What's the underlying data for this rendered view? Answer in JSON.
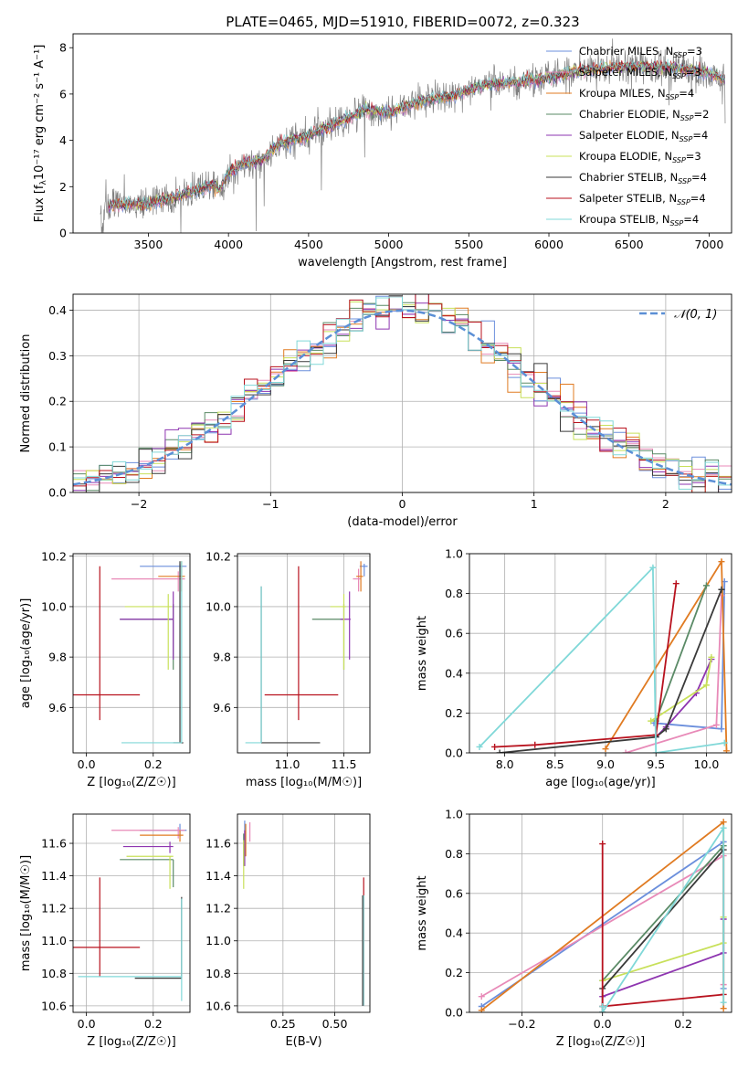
{
  "figure": {
    "title": "PLATE=0465, MJD=51910, FIBERID=0072, z=0.323"
  },
  "models": [
    {
      "name": "Chabrier MILES",
      "nssp": "3",
      "color": "#6b8fdc"
    },
    {
      "name": "Salpeter MILES",
      "nssp": "3",
      "color": "#e88ab8"
    },
    {
      "name": "Kroupa MILES",
      "nssp": "4",
      "color": "#e07b22"
    },
    {
      "name": "Chabrier ELODIE",
      "nssp": "2",
      "color": "#5a8a66"
    },
    {
      "name": "Salpeter ELODIE",
      "nssp": "4",
      "color": "#8e35b0"
    },
    {
      "name": "Kroupa ELODIE",
      "nssp": "3",
      "color": "#c8e05a"
    },
    {
      "name": "Chabrier STELIB",
      "nssp": "4",
      "color": "#3a3a3a"
    },
    {
      "name": "Salpeter STELIB",
      "nssp": "4",
      "color": "#b8121e"
    },
    {
      "name": "Kroupa STELIB",
      "nssp": "4",
      "color": "#80d8d8"
    }
  ],
  "chart_data": [
    {
      "id": "spectrum",
      "type": "line",
      "xlabel": "wavelength [Angstrom, rest frame]",
      "ylabel": "Flux [f",
      "ylabel_unit": "10⁻¹⁷ erg cm⁻² s⁻¹ A⁻¹]",
      "xlim": [
        3030,
        7140
      ],
      "ylim": [
        0,
        8.6
      ],
      "xticks": [
        3500,
        4000,
        4500,
        5000,
        5500,
        6000,
        6500,
        7000
      ],
      "yticks": [
        0,
        2,
        4,
        6,
        8
      ],
      "data_color": "#808080",
      "continuum": {
        "x": [
          3200,
          3250,
          3500,
          3700,
          3900,
          3950,
          4000,
          4100,
          4200,
          4300,
          4500,
          4700,
          4850,
          5000,
          5200,
          5400,
          5600,
          5800,
          6000,
          6200,
          6400,
          6600,
          6800,
          7000,
          7100
        ],
        "y": [
          0.3,
          1.2,
          1.25,
          1.6,
          2.1,
          1.9,
          2.6,
          3.0,
          3.1,
          3.8,
          4.2,
          4.8,
          5.3,
          5.2,
          5.7,
          5.9,
          6.4,
          6.5,
          6.7,
          7.0,
          7.15,
          7.2,
          7.1,
          6.9,
          6.6
        ]
      },
      "data_xrange": [
        3200,
        7100
      ]
    },
    {
      "id": "residuals",
      "type": "histogram",
      "xlabel": "(data-model)/error",
      "ylabel": "Normed distribution",
      "xlim": [
        -2.5,
        2.5
      ],
      "ylim": [
        0,
        0.435
      ],
      "xticks": [
        -2,
        -1,
        0,
        1,
        2
      ],
      "xticklabels": [
        "−2",
        "−1",
        "0",
        "1",
        "2"
      ],
      "yticks": [
        0,
        0.1,
        0.2,
        0.3,
        0.4
      ],
      "yticklabels": [
        "0.0",
        "0.1",
        "0.2",
        "0.3",
        "0.4"
      ],
      "bin_width": 0.1,
      "grid": true,
      "gaussian": {
        "label": "𝒩(0, 1)",
        "mean": 0,
        "sigma": 1,
        "color": "#5b8fd6"
      },
      "legend_loc": "upper right"
    },
    {
      "id": "age-vs-Z",
      "type": "errorbar",
      "xlabel": "Z [log₁₀(Z/Z☉)]",
      "ylabel": "age  [log₁₀(age/yr)]",
      "xlim": [
        -0.04,
        0.31
      ],
      "ylim": [
        9.42,
        10.21
      ],
      "xticks": [
        0.0,
        0.2
      ],
      "xticklabels": [
        "0.0",
        "0.2"
      ],
      "yticks": [
        9.6,
        9.8,
        10.0,
        10.2
      ],
      "yticklabels": [
        "9.6",
        "9.8",
        "10.0",
        "10.2"
      ],
      "points": [
        {
          "model": 0,
          "x": 0.28,
          "xerr": [
            0.12,
            0.02
          ],
          "y": 10.16,
          "yerr": [
            0.04,
            0.01
          ]
        },
        {
          "model": 1,
          "x": 0.275,
          "xerr": [
            0.2,
            0.02
          ],
          "y": 10.11,
          "yerr": [
            0.05,
            0.03
          ]
        },
        {
          "model": 2,
          "x": 0.285,
          "xerr": [
            0.07,
            0.01
          ],
          "y": 10.12,
          "yerr": [
            0.06,
            0.06
          ]
        },
        {
          "model": 3,
          "x": 0.26,
          "xerr": [
            0.16,
            0.0
          ],
          "y": 9.95,
          "yerr": [
            0.2,
            0.06
          ]
        },
        {
          "model": 4,
          "x": 0.26,
          "xerr": [
            0.16,
            0.0
          ],
          "y": 9.95,
          "yerr": [
            0.16,
            0.11
          ]
        },
        {
          "model": 5,
          "x": 0.245,
          "xerr": [
            0.13,
            0.01
          ],
          "y": 10.0,
          "yerr": [
            0.25,
            0.05
          ]
        },
        {
          "model": 6,
          "x": 0.28,
          "xerr": [
            0.02,
            0.01
          ],
          "y": 9.46,
          "yerr": [
            0.0,
            0.72
          ]
        },
        {
          "model": 7,
          "x": 0.04,
          "xerr": [
            0.08,
            0.12
          ],
          "y": 9.65,
          "yerr": [
            0.1,
            0.51
          ]
        },
        {
          "model": 8,
          "x": 0.285,
          "xerr": [
            0.18,
            0.0
          ],
          "y": 9.46,
          "yerr": [
            0.0,
            0.72
          ]
        }
      ]
    },
    {
      "id": "age-vs-mass",
      "type": "errorbar",
      "xlabel": "mass [log₁₀(M/M☉)]",
      "xlim": [
        10.56,
        11.73
      ],
      "ylim": [
        9.42,
        10.21
      ],
      "xticks": [
        11.0,
        11.5
      ],
      "xticklabels": [
        "11.0",
        "11.5"
      ],
      "yticks": [
        9.6,
        9.8,
        10.0,
        10.2
      ],
      "yticklabels": [
        "9.6",
        "9.8",
        "10.0",
        "10.2"
      ],
      "points": [
        {
          "model": 0,
          "x": 11.68,
          "xerr": [
            0.04,
            0.03
          ],
          "y": 10.16,
          "yerr": [
            0.04,
            0.01
          ]
        },
        {
          "model": 1,
          "x": 11.63,
          "xerr": [
            0.05,
            0.02
          ],
          "y": 10.11,
          "yerr": [
            0.05,
            0.04
          ]
        },
        {
          "model": 2,
          "x": 11.65,
          "xerr": [
            0.04,
            0.02
          ],
          "y": 10.12,
          "yerr": [
            0.06,
            0.06
          ]
        },
        {
          "model": 3,
          "x": 11.5,
          "xerr": [
            0.28,
            0.0
          ],
          "y": 9.95,
          "yerr": [
            0.2,
            0.06
          ]
        },
        {
          "model": 4,
          "x": 11.55,
          "xerr": [
            0.08,
            0.01
          ],
          "y": 9.95,
          "yerr": [
            0.16,
            0.11
          ]
        },
        {
          "model": 5,
          "x": 11.5,
          "xerr": [
            0.12,
            0.02
          ],
          "y": 10.0,
          "yerr": [
            0.25,
            0.05
          ]
        },
        {
          "model": 6,
          "x": 10.77,
          "xerr": [
            0.0,
            0.52
          ],
          "y": 9.46,
          "yerr": [
            0.0,
            0.62
          ]
        },
        {
          "model": 7,
          "x": 11.1,
          "xerr": [
            0.3,
            0.35
          ],
          "y": 9.65,
          "yerr": [
            0.1,
            0.51
          ]
        },
        {
          "model": 8,
          "x": 10.77,
          "xerr": [
            0.14,
            0.0
          ],
          "y": 9.46,
          "yerr": [
            0.0,
            0.62
          ]
        }
      ]
    },
    {
      "id": "weight-vs-age",
      "type": "line",
      "xlabel": "age  [log₁₀(age/yr)]",
      "ylabel": "mass weight",
      "xlim": [
        7.65,
        10.25
      ],
      "ylim": [
        0,
        1.0
      ],
      "xticks": [
        8.0,
        8.5,
        9.0,
        9.5,
        10.0
      ],
      "xticklabels": [
        "8.0",
        "8.5",
        "9.0",
        "9.5",
        "10.0"
      ],
      "yticks": [
        0,
        0.2,
        0.4,
        0.6,
        0.8,
        1.0
      ],
      "yticklabels": [
        "0.0",
        "0.2",
        "0.4",
        "0.6",
        "0.8",
        "1.0"
      ],
      "series": [
        {
          "model": 0,
          "x": [
            9.48,
            10.15,
            10.18
          ],
          "y": [
            0.15,
            0.12,
            0.86
          ]
        },
        {
          "model": 1,
          "x": [
            9.2,
            10.1,
            10.15
          ],
          "y": [
            0.0,
            0.14,
            0.79
          ]
        },
        {
          "model": 2,
          "x": [
            9.0,
            10.15,
            10.2
          ],
          "y": [
            0.02,
            0.96,
            0.01
          ]
        },
        {
          "model": 3,
          "x": [
            9.5,
            10.0
          ],
          "y": [
            0.16,
            0.84
          ]
        },
        {
          "model": 4,
          "x": [
            9.5,
            9.6,
            9.9,
            10.05
          ],
          "y": [
            0.08,
            0.13,
            0.3,
            0.47
          ]
        },
        {
          "model": 5,
          "x": [
            9.45,
            10.0,
            10.05
          ],
          "y": [
            0.16,
            0.34,
            0.48
          ]
        },
        {
          "model": 6,
          "x": [
            7.95,
            9.5,
            9.6,
            10.15
          ],
          "y": [
            0.0,
            0.08,
            0.12,
            0.82
          ]
        },
        {
          "model": 7,
          "x": [
            7.9,
            8.3,
            9.5,
            9.7
          ],
          "y": [
            0.03,
            0.04,
            0.09,
            0.85
          ]
        },
        {
          "model": 8,
          "x": [
            7.75,
            9.47,
            9.5,
            10.18
          ],
          "y": [
            0.03,
            0.93,
            0.0,
            0.05
          ]
        }
      ]
    },
    {
      "id": "mass-vs-Z",
      "type": "errorbar",
      "xlabel": "Z [log₁₀(Z/Z☉)]",
      "ylabel": "mass [log₁₀(M/M☉)]",
      "xlim": [
        -0.04,
        0.31
      ],
      "ylim": [
        10.56,
        11.78
      ],
      "xticks": [
        0.0,
        0.2
      ],
      "xticklabels": [
        "0.0",
        "0.2"
      ],
      "yticks": [
        10.6,
        10.8,
        11.0,
        11.2,
        11.4,
        11.6
      ],
      "yticklabels": [
        "10.6",
        "10.8",
        "11.0",
        "11.2",
        "11.4",
        "11.6"
      ],
      "points": [
        {
          "model": 0,
          "x": 0.28,
          "xerr": [
            0.12,
            0.02
          ],
          "y": 11.68,
          "yerr": [
            0.04,
            0.04
          ]
        },
        {
          "model": 1,
          "x": 0.275,
          "xerr": [
            0.2,
            0.02
          ],
          "y": 11.68,
          "yerr": [
            0.05,
            0.02
          ]
        },
        {
          "model": 2,
          "x": 0.28,
          "xerr": [
            0.12,
            0.01
          ],
          "y": 11.65,
          "yerr": [
            0.04,
            0.03
          ]
        },
        {
          "model": 3,
          "x": 0.26,
          "xerr": [
            0.16,
            0.0
          ],
          "y": 11.5,
          "yerr": [
            0.17,
            0.0
          ]
        },
        {
          "model": 4,
          "x": 0.25,
          "xerr": [
            0.14,
            0.01
          ],
          "y": 11.58,
          "yerr": [
            0.04,
            0.03
          ]
        },
        {
          "model": 5,
          "x": 0.25,
          "xerr": [
            0.13,
            0.01
          ],
          "y": 11.52,
          "yerr": [
            0.2,
            0.0
          ]
        },
        {
          "model": 6,
          "x": 0.285,
          "xerr": [
            0.14,
            0.0
          ],
          "y": 10.77,
          "yerr": [
            0.0,
            0.5
          ]
        },
        {
          "model": 7,
          "x": 0.04,
          "xerr": [
            0.08,
            0.12
          ],
          "y": 10.96,
          "yerr": [
            0.18,
            0.43
          ]
        },
        {
          "model": 8,
          "x": 0.285,
          "xerr": [
            0.31,
            0.0
          ],
          "y": 10.78,
          "yerr": [
            0.15,
            0.48
          ]
        }
      ]
    },
    {
      "id": "mass-vs-EBV",
      "type": "errorbar",
      "xlabel": "E(B-V)",
      "xlim": [
        0.03,
        0.67
      ],
      "ylim": [
        10.56,
        11.78
      ],
      "xticks": [
        0.25,
        0.5
      ],
      "xticklabels": [
        "0.25",
        "0.50"
      ],
      "yticks": [
        10.6,
        10.8,
        11.0,
        11.2,
        11.4,
        11.6
      ],
      "yticklabels": [
        "10.6",
        "10.8",
        "11.0",
        "11.2",
        "11.4",
        "11.6"
      ],
      "points": [
        {
          "model": 0,
          "x": 0.065,
          "xerr": [
            0.0,
            0.0
          ],
          "y": 11.66,
          "yerr": [
            0.07,
            0.08
          ]
        },
        {
          "model": 1,
          "x": 0.09,
          "xerr": [
            0.0,
            0.0
          ],
          "y": 11.66,
          "yerr": [
            0.05,
            0.07
          ]
        },
        {
          "model": 2,
          "x": 0.07,
          "xerr": [
            0.0,
            0.0
          ],
          "y": 11.62,
          "yerr": [
            0.1,
            0.1
          ]
        },
        {
          "model": 3,
          "x": 0.06,
          "xerr": [
            0.0,
            0.0
          ],
          "y": 11.56,
          "yerr": [
            0.1,
            0.1
          ]
        },
        {
          "model": 4,
          "x": 0.065,
          "xerr": [
            0.0,
            0.0
          ],
          "y": 11.56,
          "yerr": [
            0.1,
            0.12
          ]
        },
        {
          "model": 5,
          "x": 0.06,
          "xerr": [
            0.0,
            0.0
          ],
          "y": 11.5,
          "yerr": [
            0.18,
            0.12
          ]
        },
        {
          "model": 6,
          "x": 0.635,
          "xerr": [
            0.0,
            0.0
          ],
          "y": 10.95,
          "yerr": [
            0.35,
            0.33
          ]
        },
        {
          "model": 7,
          "x": 0.64,
          "xerr": [
            0.0,
            0.0
          ],
          "y": 11.0,
          "yerr": [
            0.4,
            0.39
          ]
        },
        {
          "model": 8,
          "x": 0.64,
          "xerr": [
            0.0,
            0.0
          ],
          "y": 10.95,
          "yerr": [
            0.35,
            0.33
          ]
        }
      ]
    },
    {
      "id": "weight-vs-Z",
      "type": "line",
      "xlabel": "Z [log₁₀(Z/Z☉)]",
      "ylabel": "mass weight",
      "xlim": [
        -0.33,
        0.32
      ],
      "ylim": [
        0,
        1.0
      ],
      "xticks": [
        -0.2,
        0.0,
        0.2
      ],
      "xticklabels": [
        "−0.2",
        "0.0",
        "0.2"
      ],
      "yticks": [
        0,
        0.2,
        0.4,
        0.6,
        0.8,
        1.0
      ],
      "yticklabels": [
        "0.0",
        "0.2",
        "0.4",
        "0.6",
        "0.8",
        "1.0"
      ],
      "series": [
        {
          "model": 0,
          "x": [
            -0.3,
            0.3,
            0.3
          ],
          "y": [
            0.03,
            0.86,
            0.12
          ]
        },
        {
          "model": 1,
          "x": [
            -0.3,
            0.3,
            0.3
          ],
          "y": [
            0.08,
            0.79,
            0.14
          ]
        },
        {
          "model": 2,
          "x": [
            -0.3,
            0.3,
            0.3
          ],
          "y": [
            0.01,
            0.96,
            0.02
          ]
        },
        {
          "model": 3,
          "x": [
            0.0,
            0.3
          ],
          "y": [
            0.16,
            0.84
          ]
        },
        {
          "model": 4,
          "x": [
            0.0,
            0.3,
            0.3
          ],
          "y": [
            0.08,
            0.3,
            0.47
          ]
        },
        {
          "model": 5,
          "x": [
            0.0,
            0.3,
            0.3
          ],
          "y": [
            0.16,
            0.35,
            0.48
          ]
        },
        {
          "model": 6,
          "x": [
            0.0,
            0.0,
            0.3
          ],
          "y": [
            0.0,
            0.12,
            0.82
          ]
        },
        {
          "model": 7,
          "x": [
            0.0,
            0.0,
            0.3
          ],
          "y": [
            0.85,
            0.03,
            0.09
          ]
        },
        {
          "model": 8,
          "x": [
            0.0,
            0.0,
            0.3,
            0.3
          ],
          "y": [
            0.03,
            0.0,
            0.93,
            0.05
          ]
        }
      ]
    }
  ]
}
